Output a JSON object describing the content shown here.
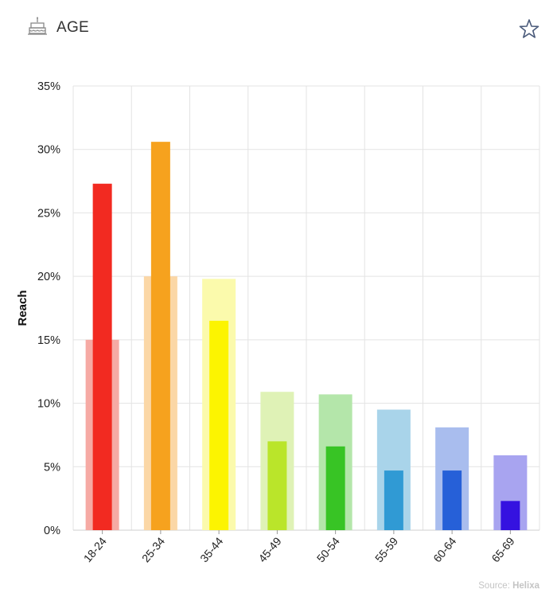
{
  "header": {
    "title": "AGE",
    "icon": "cake-icon",
    "favorite_icon": "star-outline-icon"
  },
  "source": {
    "prefix": "Source:",
    "name": "Helixa"
  },
  "chart_data": {
    "type": "bar",
    "ylabel": "Reach",
    "xlabel": "",
    "ylim": [
      0,
      35
    ],
    "yticks": [
      "0%",
      "5%",
      "10%",
      "15%",
      "20%",
      "25%",
      "30%",
      "35%"
    ],
    "grid": true,
    "categories": [
      "18-24",
      "25-34",
      "35-44",
      "45-49",
      "50-54",
      "55-59",
      "60-64",
      "65-69"
    ],
    "series": [
      {
        "values": [
          15.0,
          20.0,
          19.8,
          10.9,
          10.7,
          9.5,
          8.1,
          5.9
        ]
      },
      {
        "values": [
          27.3,
          30.6,
          16.5,
          7.0,
          6.6,
          4.7,
          4.7,
          2.3
        ]
      }
    ],
    "colors": {
      "wide": [
        "#f6aaa4",
        "#fbd7a6",
        "#fbfaac",
        "#dff2b6",
        "#b4e6aa",
        "#a9d4ea",
        "#a9bdee",
        "#a8a4f0"
      ],
      "narrow": [
        "#f22a21",
        "#f6a21e",
        "#fcf401",
        "#bae52a",
        "#38c425",
        "#309ad4",
        "#2660d8",
        "#3512e0"
      ]
    }
  }
}
